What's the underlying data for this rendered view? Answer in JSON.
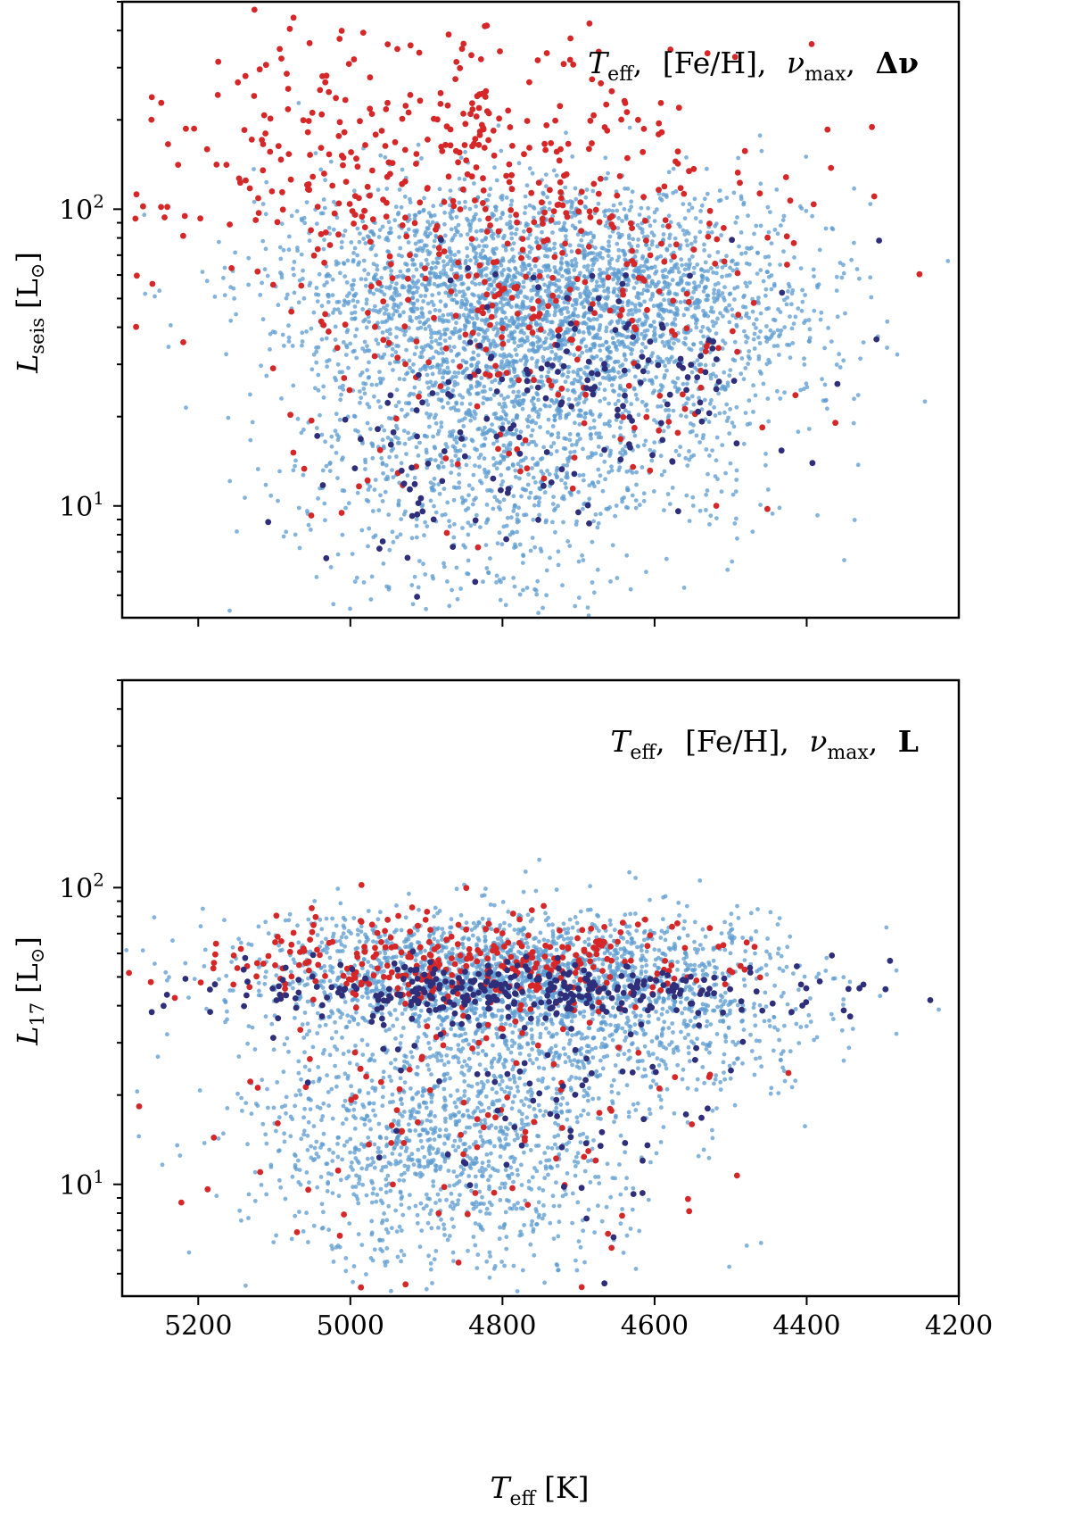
{
  "chart_data": [
    {
      "type": "scatter",
      "panel": "top",
      "title": "",
      "annotation": {
        "teff": "T",
        "teff_sub": "eff",
        "feh": "[Fe/H]",
        "numax": "ν",
        "numax_sub": "max",
        "last": "Δν",
        "sep": ","
      },
      "xlabel": "",
      "ylabel": {
        "sym": "L",
        "sub": "seis",
        "unit": "[L",
        "unit_sub": "⊙",
        "close": "]"
      },
      "xlim": [
        5300,
        4200
      ],
      "ylim": [
        4.2,
        500
      ],
      "yscale": "log",
      "yticks": [
        {
          "value": 10,
          "base": "10",
          "exp": "1"
        },
        {
          "value": 100,
          "base": "10",
          "exp": "2"
        }
      ],
      "xticks": [
        5200,
        5000,
        4800,
        4600,
        4400
      ],
      "show_xtick_labels": false,
      "series": [
        {
          "name": "background",
          "color": "#5b9bd0",
          "distribution": [
            {
              "teff": 4820,
              "L": 55,
              "sx": 150,
              "sy": 0.18,
              "n": 1600
            },
            {
              "teff": 4620,
              "L": 50,
              "sx": 140,
              "sy": 0.2,
              "n": 900
            },
            {
              "teff": 4820,
              "L": 17,
              "sx": 130,
              "sy": 0.28,
              "n": 1200
            },
            {
              "teff": 4650,
              "L": 28,
              "sx": 120,
              "sy": 0.25,
              "n": 500
            }
          ]
        },
        {
          "name": "red",
          "color": "#d62728",
          "distribution": [
            {
              "teff": 4900,
              "L": 160,
              "sx": 200,
              "sy": 0.22,
              "n": 360
            },
            {
              "teff": 4720,
              "L": 60,
              "sx": 150,
              "sy": 0.22,
              "n": 170
            },
            {
              "teff": 4800,
              "L": 22,
              "sx": 150,
              "sy": 0.28,
              "n": 90
            }
          ]
        },
        {
          "name": "navy",
          "color": "#2e2e7a",
          "distribution": [
            {
              "teff": 4660,
              "L": 32,
              "sx": 110,
              "sy": 0.18,
              "n": 100
            },
            {
              "teff": 4850,
              "L": 13,
              "sx": 130,
              "sy": 0.22,
              "n": 80
            }
          ]
        }
      ]
    },
    {
      "type": "scatter",
      "panel": "bottom",
      "title": "",
      "annotation": {
        "teff": "T",
        "teff_sub": "eff",
        "feh": "[Fe/H]",
        "numax": "ν",
        "numax_sub": "max",
        "last": "L",
        "sep": ","
      },
      "xlabel": {
        "sym": "T",
        "sub": "eff",
        "unit": "[K]"
      },
      "ylabel": {
        "sym": "L",
        "sub": "17",
        "unit": "[L",
        "unit_sub": "⊙",
        "close": "]"
      },
      "xlim": [
        5300,
        4200
      ],
      "ylim": [
        4.2,
        500
      ],
      "yscale": "log",
      "yticks": [
        {
          "value": 10,
          "base": "10",
          "exp": "1"
        },
        {
          "value": 100,
          "base": "10",
          "exp": "2"
        }
      ],
      "xticks": [
        5200,
        5000,
        4800,
        4600,
        4400,
        4200
      ],
      "show_xtick_labels": true,
      "series": [
        {
          "name": "background",
          "color": "#5b9bd0",
          "distribution": [
            {
              "teff": 4820,
              "L": 52,
              "sx": 160,
              "sy": 0.1,
              "n": 1600
            },
            {
              "teff": 4650,
              "L": 38,
              "sx": 130,
              "sy": 0.15,
              "n": 800
            },
            {
              "teff": 4880,
              "L": 14,
              "sx": 130,
              "sy": 0.22,
              "n": 1300
            }
          ]
        },
        {
          "name": "red",
          "color": "#d62728",
          "distribution": [
            {
              "teff": 4850,
              "L": 56,
              "sx": 170,
              "sy": 0.08,
              "n": 330
            },
            {
              "teff": 4820,
              "L": 16,
              "sx": 160,
              "sy": 0.28,
              "n": 120
            }
          ]
        },
        {
          "name": "navy",
          "color": "#2e2e7a",
          "distribution": [
            {
              "teff": 4800,
              "L": 45,
              "sx": 180,
              "sy": 0.05,
              "n": 330
            },
            {
              "teff": 4720,
              "L": 22,
              "sx": 130,
              "sy": 0.22,
              "n": 80
            }
          ]
        }
      ]
    }
  ]
}
